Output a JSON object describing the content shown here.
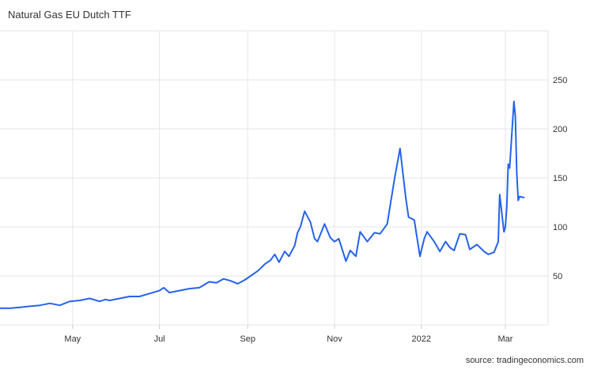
{
  "header": {
    "title": "Natural Gas EU Dutch TTF"
  },
  "footer": {
    "source": "source: tradingeconomics.com"
  },
  "chart_data": {
    "type": "line",
    "title": "Natural Gas EU Dutch TTF",
    "xlabel": "",
    "ylabel": "",
    "ylim": [
      0,
      300
    ],
    "y_ticks": [
      50,
      100,
      150,
      200,
      250
    ],
    "y_axis_side": "right",
    "grid": true,
    "line_color": "#2563eb",
    "x_ticks": [
      {
        "label": "May",
        "x": "2021-05-01"
      },
      {
        "label": "Jul",
        "x": "2021-07-01"
      },
      {
        "label": "Sep",
        "x": "2021-09-01"
      },
      {
        "label": "Nov",
        "x": "2021-11-01"
      },
      {
        "label": "2022",
        "x": "2022-01-01"
      },
      {
        "label": "Mar",
        "x": "2022-03-01"
      }
    ],
    "x_range": [
      "2021-03-11",
      "2022-03-31"
    ],
    "series": [
      {
        "x": [
          "2021-03-11",
          "2021-03-18",
          "2021-03-25",
          "2021-04-01",
          "2021-04-08",
          "2021-04-15",
          "2021-04-22",
          "2021-04-29",
          "2021-05-06",
          "2021-05-13",
          "2021-05-20",
          "2021-05-24",
          "2021-05-27",
          "2021-06-03",
          "2021-06-10",
          "2021-06-17",
          "2021-06-24",
          "2021-07-01",
          "2021-07-04",
          "2021-07-08",
          "2021-07-15",
          "2021-07-22",
          "2021-07-29",
          "2021-08-05",
          "2021-08-10",
          "2021-08-15",
          "2021-08-20",
          "2021-08-25",
          "2021-08-30",
          "2021-09-03",
          "2021-09-08",
          "2021-09-13",
          "2021-09-17",
          "2021-09-20",
          "2021-09-23",
          "2021-09-27",
          "2021-09-30",
          "2021-10-04",
          "2021-10-06",
          "2021-10-08",
          "2021-10-11",
          "2021-10-15",
          "2021-10-18",
          "2021-10-20",
          "2021-10-25",
          "2021-10-29",
          "2021-11-01",
          "2021-11-04",
          "2021-11-09",
          "2021-11-12",
          "2021-11-16",
          "2021-11-19",
          "2021-11-24",
          "2021-11-29",
          "2021-12-03",
          "2021-12-08",
          "2021-12-13",
          "2021-12-17",
          "2021-12-21",
          "2021-12-23",
          "2021-12-27",
          "2021-12-31",
          "2022-01-03",
          "2022-01-05",
          "2022-01-10",
          "2022-01-14",
          "2022-01-18",
          "2022-01-21",
          "2022-01-24",
          "2022-01-28",
          "2022-02-01",
          "2022-02-04",
          "2022-02-09",
          "2022-02-14",
          "2022-02-17",
          "2022-02-21",
          "2022-02-24",
          "2022-02-25",
          "2022-02-28",
          "2022-03-01",
          "2022-03-02",
          "2022-03-03",
          "2022-03-04",
          "2022-03-07",
          "2022-03-08",
          "2022-03-09",
          "2022-03-10",
          "2022-03-11",
          "2022-03-14"
        ],
        "values": [
          17,
          17,
          18,
          19,
          20,
          22,
          20,
          24,
          25,
          27,
          24,
          26,
          25,
          27,
          29,
          29,
          32,
          35,
          38,
          33,
          35,
          37,
          38,
          44,
          43,
          47,
          45,
          42,
          46,
          50,
          55,
          62,
          66,
          72,
          64,
          75,
          70,
          81,
          94,
          100,
          116,
          105,
          88,
          85,
          103,
          89,
          85,
          88,
          65,
          76,
          70,
          95,
          85,
          94,
          93,
          103,
          148,
          180,
          130,
          110,
          107,
          70,
          88,
          95,
          85,
          75,
          85,
          79,
          76,
          93,
          92,
          77,
          82,
          75,
          72,
          74,
          85,
          133,
          95,
          100,
          121,
          164,
          160,
          228,
          213,
          155,
          127,
          131,
          130
        ]
      }
    ]
  }
}
